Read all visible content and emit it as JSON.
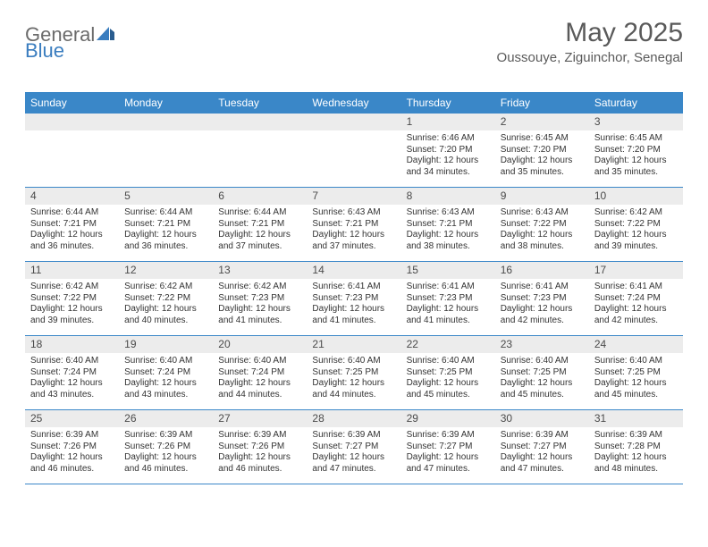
{
  "brand": {
    "part1": "General",
    "part2": "Blue"
  },
  "title": "May 2025",
  "location": "Oussouye, Ziguinchor, Senegal",
  "colors": {
    "header_bg": "#3a87c8",
    "header_text": "#ffffff",
    "daynum_bg": "#ececec",
    "text": "#333333",
    "title_color": "#5a5a5a",
    "brand_gray": "#6b6b6b",
    "brand_blue": "#3a7dbf"
  },
  "days_of_week": [
    "Sunday",
    "Monday",
    "Tuesday",
    "Wednesday",
    "Thursday",
    "Friday",
    "Saturday"
  ],
  "weeks": [
    [
      null,
      null,
      null,
      null,
      {
        "n": "1",
        "sr": "6:46 AM",
        "ss": "7:20 PM",
        "dl": "12 hours and 34 minutes."
      },
      {
        "n": "2",
        "sr": "6:45 AM",
        "ss": "7:20 PM",
        "dl": "12 hours and 35 minutes."
      },
      {
        "n": "3",
        "sr": "6:45 AM",
        "ss": "7:20 PM",
        "dl": "12 hours and 35 minutes."
      }
    ],
    [
      {
        "n": "4",
        "sr": "6:44 AM",
        "ss": "7:21 PM",
        "dl": "12 hours and 36 minutes."
      },
      {
        "n": "5",
        "sr": "6:44 AM",
        "ss": "7:21 PM",
        "dl": "12 hours and 36 minutes."
      },
      {
        "n": "6",
        "sr": "6:44 AM",
        "ss": "7:21 PM",
        "dl": "12 hours and 37 minutes."
      },
      {
        "n": "7",
        "sr": "6:43 AM",
        "ss": "7:21 PM",
        "dl": "12 hours and 37 minutes."
      },
      {
        "n": "8",
        "sr": "6:43 AM",
        "ss": "7:21 PM",
        "dl": "12 hours and 38 minutes."
      },
      {
        "n": "9",
        "sr": "6:43 AM",
        "ss": "7:22 PM",
        "dl": "12 hours and 38 minutes."
      },
      {
        "n": "10",
        "sr": "6:42 AM",
        "ss": "7:22 PM",
        "dl": "12 hours and 39 minutes."
      }
    ],
    [
      {
        "n": "11",
        "sr": "6:42 AM",
        "ss": "7:22 PM",
        "dl": "12 hours and 39 minutes."
      },
      {
        "n": "12",
        "sr": "6:42 AM",
        "ss": "7:22 PM",
        "dl": "12 hours and 40 minutes."
      },
      {
        "n": "13",
        "sr": "6:42 AM",
        "ss": "7:23 PM",
        "dl": "12 hours and 41 minutes."
      },
      {
        "n": "14",
        "sr": "6:41 AM",
        "ss": "7:23 PM",
        "dl": "12 hours and 41 minutes."
      },
      {
        "n": "15",
        "sr": "6:41 AM",
        "ss": "7:23 PM",
        "dl": "12 hours and 41 minutes."
      },
      {
        "n": "16",
        "sr": "6:41 AM",
        "ss": "7:23 PM",
        "dl": "12 hours and 42 minutes."
      },
      {
        "n": "17",
        "sr": "6:41 AM",
        "ss": "7:24 PM",
        "dl": "12 hours and 42 minutes."
      }
    ],
    [
      {
        "n": "18",
        "sr": "6:40 AM",
        "ss": "7:24 PM",
        "dl": "12 hours and 43 minutes."
      },
      {
        "n": "19",
        "sr": "6:40 AM",
        "ss": "7:24 PM",
        "dl": "12 hours and 43 minutes."
      },
      {
        "n": "20",
        "sr": "6:40 AM",
        "ss": "7:24 PM",
        "dl": "12 hours and 44 minutes."
      },
      {
        "n": "21",
        "sr": "6:40 AM",
        "ss": "7:25 PM",
        "dl": "12 hours and 44 minutes."
      },
      {
        "n": "22",
        "sr": "6:40 AM",
        "ss": "7:25 PM",
        "dl": "12 hours and 45 minutes."
      },
      {
        "n": "23",
        "sr": "6:40 AM",
        "ss": "7:25 PM",
        "dl": "12 hours and 45 minutes."
      },
      {
        "n": "24",
        "sr": "6:40 AM",
        "ss": "7:25 PM",
        "dl": "12 hours and 45 minutes."
      }
    ],
    [
      {
        "n": "25",
        "sr": "6:39 AM",
        "ss": "7:26 PM",
        "dl": "12 hours and 46 minutes."
      },
      {
        "n": "26",
        "sr": "6:39 AM",
        "ss": "7:26 PM",
        "dl": "12 hours and 46 minutes."
      },
      {
        "n": "27",
        "sr": "6:39 AM",
        "ss": "7:26 PM",
        "dl": "12 hours and 46 minutes."
      },
      {
        "n": "28",
        "sr": "6:39 AM",
        "ss": "7:27 PM",
        "dl": "12 hours and 47 minutes."
      },
      {
        "n": "29",
        "sr": "6:39 AM",
        "ss": "7:27 PM",
        "dl": "12 hours and 47 minutes."
      },
      {
        "n": "30",
        "sr": "6:39 AM",
        "ss": "7:27 PM",
        "dl": "12 hours and 47 minutes."
      },
      {
        "n": "31",
        "sr": "6:39 AM",
        "ss": "7:28 PM",
        "dl": "12 hours and 48 minutes."
      }
    ]
  ],
  "labels": {
    "sunrise": "Sunrise: ",
    "sunset": "Sunset: ",
    "daylight": "Daylight: "
  }
}
